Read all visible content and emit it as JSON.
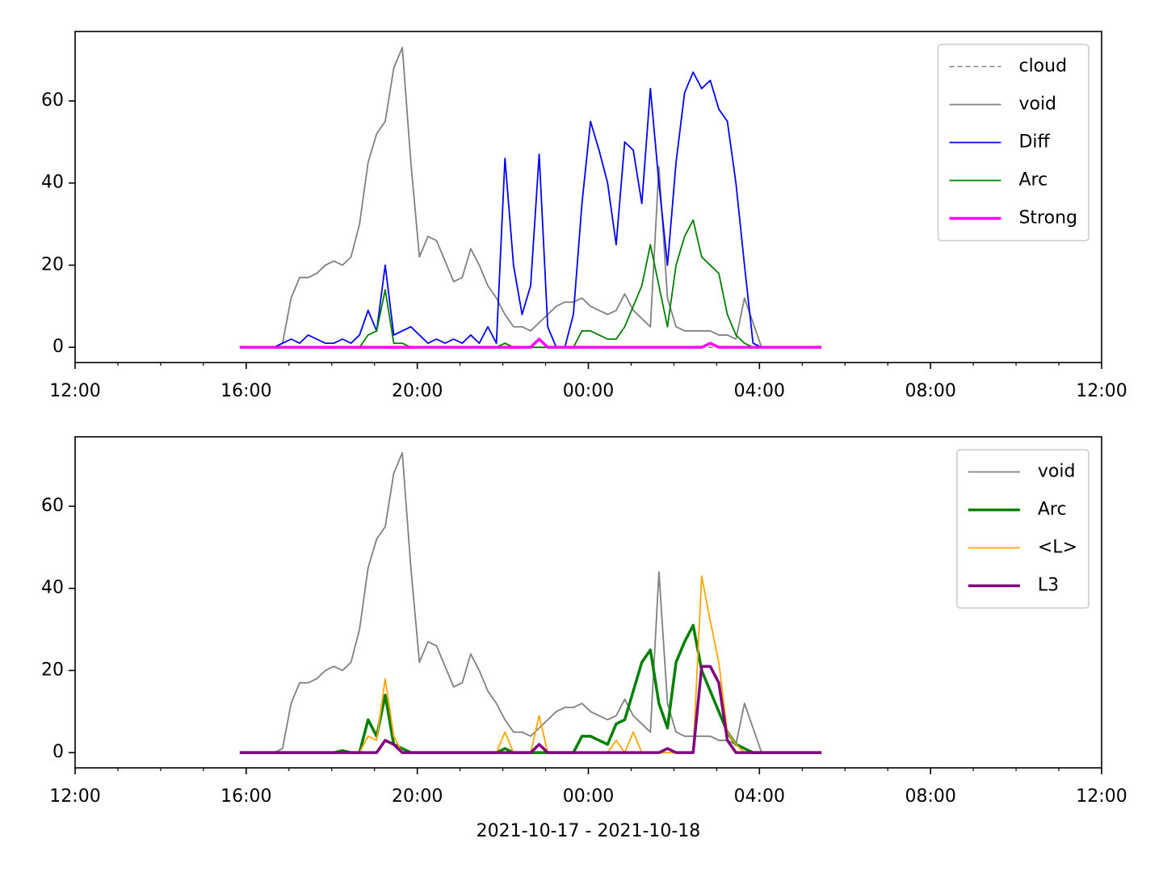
{
  "chart_data": [
    {
      "type": "line",
      "x": [
        3.85,
        4.05,
        4.25,
        4.45,
        4.65,
        4.85,
        5.05,
        5.25,
        5.45,
        5.65,
        5.85,
        6.05,
        6.25,
        6.45,
        6.65,
        6.85,
        7.05,
        7.25,
        7.45,
        7.65,
        7.85,
        8.05,
        8.25,
        8.45,
        8.65,
        8.85,
        9.05,
        9.25,
        9.45,
        9.65,
        9.85,
        10.05,
        10.25,
        10.45,
        10.65,
        10.85,
        11.05,
        11.25,
        11.45,
        11.65,
        11.85,
        12.05,
        12.25,
        12.45,
        12.65,
        12.85,
        13.05,
        13.25,
        13.45,
        13.65,
        13.85,
        14.05,
        14.25,
        14.45,
        14.65,
        14.85,
        15.05,
        15.25,
        15.45,
        15.65,
        15.85,
        16.05,
        16.25,
        16.45,
        16.65,
        16.85,
        17.05,
        17.25,
        17.45
      ],
      "series": [
        {
          "name": "cloud",
          "color": "#808080",
          "linewidth": 1.5,
          "linestyle": "dashed",
          "values": [
            0,
            0,
            0,
            0,
            0,
            0,
            0,
            0,
            0,
            0,
            0,
            0,
            0,
            0,
            0,
            0,
            0,
            0,
            0,
            0,
            0,
            0,
            0,
            0,
            0,
            0,
            0,
            0,
            0,
            0,
            0,
            0,
            0,
            0,
            0,
            0,
            0,
            0,
            0,
            0,
            0,
            0,
            0,
            0,
            0,
            0,
            0,
            0,
            0,
            0,
            0,
            0,
            0,
            0,
            0,
            0,
            0,
            0,
            0,
            0,
            0,
            0,
            0,
            0,
            0,
            0,
            0,
            0,
            0
          ]
        },
        {
          "name": "void",
          "color": "#808080",
          "linewidth": 1.8,
          "linestyle": "solid",
          "values": [
            0,
            0,
            0,
            0,
            0,
            1,
            12,
            17,
            17,
            18,
            20,
            21,
            20,
            22,
            30,
            45,
            52,
            55,
            68,
            73,
            45,
            22,
            27,
            26,
            21,
            16,
            17,
            24,
            20,
            15,
            12,
            8,
            5,
            5,
            4,
            6,
            8,
            10,
            11,
            11,
            12,
            10,
            9,
            8,
            9,
            13,
            9,
            7,
            5,
            44,
            12,
            5,
            4,
            4,
            4,
            4,
            3,
            3,
            2,
            12,
            6,
            0,
            0,
            0,
            0,
            0,
            0,
            0,
            0
          ]
        },
        {
          "name": "Diff",
          "color": "#0000ff",
          "linewidth": 1.8,
          "linestyle": "solid",
          "values": [
            0,
            0,
            0,
            0,
            0,
            1,
            2,
            1,
            3,
            2,
            1,
            1,
            2,
            1,
            3,
            9,
            4,
            20,
            3,
            4,
            5,
            3,
            1,
            2,
            1,
            2,
            1,
            3,
            1,
            5,
            1,
            46,
            20,
            8,
            15,
            47,
            5,
            0,
            0,
            8,
            35,
            55,
            48,
            40,
            25,
            50,
            48,
            35,
            63,
            40,
            20,
            45,
            62,
            67,
            63,
            65,
            58,
            55,
            40,
            20,
            1,
            0,
            0,
            0,
            0,
            0,
            0,
            0,
            0
          ]
        },
        {
          "name": "Arc",
          "color": "#008000",
          "linewidth": 1.8,
          "linestyle": "solid",
          "values": [
            0,
            0,
            0,
            0,
            0,
            0,
            0,
            0,
            0,
            0,
            0,
            0,
            0,
            0,
            0,
            3,
            4,
            14,
            1,
            1,
            0,
            0,
            0,
            0,
            0,
            0,
            0,
            0,
            0,
            0,
            0,
            1,
            0,
            0,
            0,
            0,
            0,
            0,
            0,
            0,
            4,
            4,
            3,
            2,
            2,
            5,
            10,
            15,
            25,
            15,
            5,
            20,
            27,
            31,
            22,
            20,
            18,
            8,
            3,
            1,
            0,
            0,
            0,
            0,
            0,
            0,
            0,
            0,
            0
          ]
        },
        {
          "name": "Strong",
          "color": "#ff00ff",
          "linewidth": 3.5,
          "linestyle": "solid",
          "values": [
            0,
            0,
            0,
            0,
            0,
            0,
            0,
            0,
            0,
            0,
            0,
            0,
            0,
            0,
            0,
            0,
            0,
            0,
            0,
            0,
            0,
            0,
            0,
            0,
            0,
            0,
            0,
            0,
            0,
            0,
            0,
            0,
            0,
            0,
            0,
            2,
            0,
            0,
            0,
            0,
            0,
            0,
            0,
            0,
            0,
            0,
            0,
            0,
            0,
            0,
            0,
            0,
            0,
            0,
            0,
            1,
            0,
            0,
            0,
            0,
            0,
            0,
            0,
            0,
            0,
            0,
            0,
            0,
            0
          ]
        }
      ],
      "xlim": [
        0,
        24
      ],
      "ylim": [
        -3.7,
        76.9
      ],
      "xticks": [
        {
          "value": 0,
          "label": "12:00"
        },
        {
          "value": 4,
          "label": "16:00"
        },
        {
          "value": 8,
          "label": "20:00"
        },
        {
          "value": 12,
          "label": "00:00"
        },
        {
          "value": 16,
          "label": "04:00"
        },
        {
          "value": 20,
          "label": "08:00"
        },
        {
          "value": 24,
          "label": "12:00"
        }
      ],
      "xminorticks": [
        1,
        2,
        3,
        5,
        6,
        7,
        9,
        10,
        11,
        13,
        14,
        15,
        17,
        18,
        19,
        21,
        22,
        23
      ],
      "yticks": [
        0,
        20,
        40,
        60
      ],
      "legend": "upper right"
    },
    {
      "type": "line",
      "x": [
        3.85,
        4.05,
        4.25,
        4.45,
        4.65,
        4.85,
        5.05,
        5.25,
        5.45,
        5.65,
        5.85,
        6.05,
        6.25,
        6.45,
        6.65,
        6.85,
        7.05,
        7.25,
        7.45,
        7.65,
        7.85,
        8.05,
        8.25,
        8.45,
        8.65,
        8.85,
        9.05,
        9.25,
        9.45,
        9.65,
        9.85,
        10.05,
        10.25,
        10.45,
        10.65,
        10.85,
        11.05,
        11.25,
        11.45,
        11.65,
        11.85,
        12.05,
        12.25,
        12.45,
        12.65,
        12.85,
        13.05,
        13.25,
        13.45,
        13.65,
        13.85,
        14.05,
        14.25,
        14.45,
        14.65,
        14.85,
        15.05,
        15.25,
        15.45,
        15.65,
        15.85,
        16.05,
        16.25,
        16.45,
        16.65,
        16.85,
        17.05,
        17.25,
        17.45
      ],
      "series": [
        {
          "name": "void",
          "color": "#808080",
          "linewidth": 1.8,
          "linestyle": "solid",
          "values": [
            0,
            0,
            0,
            0,
            0,
            1,
            12,
            17,
            17,
            18,
            20,
            21,
            20,
            22,
            30,
            45,
            52,
            55,
            68,
            73,
            45,
            22,
            27,
            26,
            21,
            16,
            17,
            24,
            20,
            15,
            12,
            8,
            5,
            5,
            4,
            6,
            8,
            10,
            11,
            11,
            12,
            10,
            9,
            8,
            9,
            13,
            9,
            7,
            5,
            44,
            12,
            5,
            4,
            4,
            4,
            4,
            3,
            3,
            2,
            12,
            6,
            0,
            0,
            0,
            0,
            0,
            0,
            0,
            0
          ]
        },
        {
          "name": "Arc",
          "color": "#008000",
          "linewidth": 3.5,
          "linestyle": "solid",
          "values": [
            0,
            0,
            0,
            0,
            0,
            0,
            0,
            0,
            0,
            0,
            0,
            0,
            0.5,
            0,
            0,
            8,
            4,
            14,
            2,
            1,
            0,
            0,
            0,
            0,
            0,
            0,
            0,
            0,
            0,
            0,
            0,
            1,
            0,
            0,
            0,
            0,
            0,
            0,
            0,
            0,
            4,
            4,
            3,
            2,
            7,
            8,
            15,
            22,
            25,
            12,
            6,
            22,
            27,
            31,
            20,
            15,
            10,
            5,
            2,
            1,
            0,
            0,
            0,
            0,
            0,
            0,
            0,
            0,
            0
          ]
        },
        {
          "name": "<L>",
          "color": "#ffa500",
          "linewidth": 1.8,
          "linestyle": "solid",
          "values": [
            0,
            0,
            0,
            0,
            0,
            0,
            0,
            0,
            0,
            0,
            0,
            0,
            0,
            0,
            0,
            4,
            3,
            18,
            4,
            0,
            0,
            0,
            0,
            0,
            0,
            0,
            0,
            0,
            0,
            0,
            0,
            5,
            0,
            0,
            0,
            9,
            0,
            0,
            0,
            0,
            0,
            0,
            0,
            0,
            3,
            0,
            5,
            0,
            0,
            0,
            0,
            0,
            0,
            0,
            43,
            32,
            22,
            5,
            2,
            0,
            0,
            0,
            0,
            0,
            0,
            0,
            0,
            0,
            0
          ]
        },
        {
          "name": "L3",
          "color": "#800080",
          "linewidth": 3.5,
          "linestyle": "solid",
          "values": [
            0,
            0,
            0,
            0,
            0,
            0,
            0,
            0,
            0,
            0,
            0,
            0,
            0,
            0,
            0,
            0,
            0,
            3,
            2,
            0,
            0,
            0,
            0,
            0,
            0,
            0,
            0,
            0,
            0,
            0,
            0,
            0,
            0,
            0,
            0,
            2,
            0,
            0,
            0,
            0,
            0,
            0,
            0,
            0,
            0,
            0,
            0,
            0,
            0,
            0,
            1,
            0,
            0,
            0,
            21,
            21,
            17,
            3,
            0,
            0,
            0,
            0,
            0,
            0,
            0,
            0,
            0,
            0,
            0
          ]
        }
      ],
      "xlim": [
        0,
        24
      ],
      "ylim": [
        -3.7,
        76.9
      ],
      "xticks": [
        {
          "value": 0,
          "label": "12:00"
        },
        {
          "value": 4,
          "label": "16:00"
        },
        {
          "value": 8,
          "label": "20:00"
        },
        {
          "value": 12,
          "label": "00:00"
        },
        {
          "value": 16,
          "label": "04:00"
        },
        {
          "value": 20,
          "label": "08:00"
        },
        {
          "value": 24,
          "label": "12:00"
        }
      ],
      "xminorticks": [
        1,
        2,
        3,
        5,
        6,
        7,
        9,
        10,
        11,
        13,
        14,
        15,
        17,
        18,
        19,
        21,
        22,
        23
      ],
      "yticks": [
        0,
        20,
        40,
        60
      ],
      "xlabel": "2021-10-17 - 2021-10-18",
      "legend": "upper right"
    }
  ]
}
